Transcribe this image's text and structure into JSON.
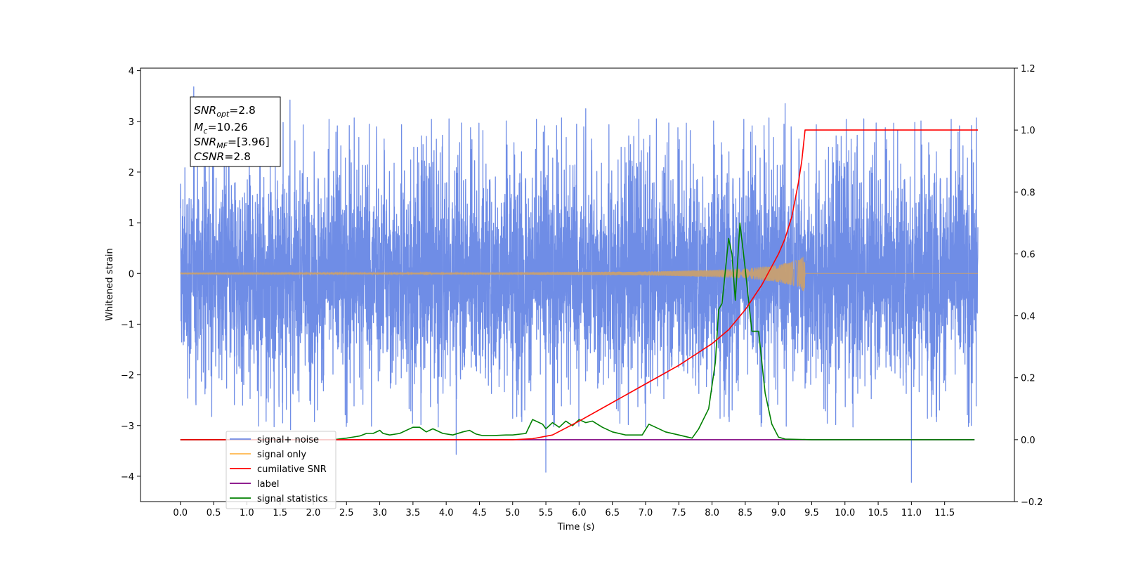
{
  "chart_data": {
    "type": "line",
    "xlabel": "Time (s)",
    "ylabel": "Whitened strain",
    "xlim": [
      -0.6,
      12.55
    ],
    "ylim": [
      -4.5,
      4.05
    ],
    "y2lim": [
      -0.2,
      1.2
    ],
    "x_ticks": [
      "0.0",
      "0.5",
      "1.0",
      "1.5",
      "2.0",
      "2.5",
      "3.0",
      "3.5",
      "4.0",
      "4.5",
      "5.0",
      "5.5",
      "6.0",
      "6.5",
      "7.0",
      "7.5",
      "8.0",
      "8.5",
      "9.0",
      "9.5",
      "10.0",
      "10.5",
      "11.0",
      "11.5"
    ],
    "y_ticks": [
      "4",
      "3",
      "2",
      "1",
      "0",
      "−1",
      "−2",
      "−3",
      "−4"
    ],
    "y2_ticks": [
      "−0.2",
      "0.0",
      "0.2",
      "0.4",
      "0.6",
      "0.8",
      "1.0",
      "1.2"
    ],
    "annotation": {
      "line1": "=2.8",
      "line2": "=10.26",
      "line3": "=[3.96]",
      "line4": "=2.8"
    },
    "legend": {
      "position": "lower-left",
      "entries": [
        {
          "label": "signal+ noise",
          "color": "#6f8de6"
        },
        {
          "label": "signal only",
          "color": "#ffb74d"
        },
        {
          "label": "cumilative SNR",
          "color": "#ff0000"
        },
        {
          "label": "label",
          "color": "#800080"
        },
        {
          "label": "signal statistics",
          "color": "#008000"
        }
      ]
    },
    "series": [
      {
        "name": "signal+ noise",
        "color": "#6f8de6",
        "axis": "left",
        "x_range": [
          0.0,
          12.0
        ],
        "typical_range": [
          -1.9,
          1.9
        ],
        "extremes": [
          [
            0.2,
            3.68
          ],
          [
            1.65,
            3.42
          ],
          [
            4.15,
            -3.57
          ],
          [
            5.5,
            -3.92
          ],
          [
            6.1,
            3.25
          ],
          [
            9.1,
            3.35
          ],
          [
            11.0,
            -4.12
          ],
          [
            11.05,
            2.98
          ],
          [
            11.9,
            -3.0
          ]
        ]
      },
      {
        "name": "signal only",
        "color": "#c8a070",
        "axis": "left",
        "x_range": [
          0.0,
          12.0
        ],
        "envelope": [
          [
            0.0,
            0.01
          ],
          [
            5.0,
            0.02
          ],
          [
            7.0,
            0.04
          ],
          [
            8.0,
            0.07
          ],
          [
            8.5,
            0.1
          ],
          [
            9.0,
            0.17
          ],
          [
            9.3,
            0.27
          ],
          [
            9.4,
            0.38
          ]
        ],
        "merger_time": 9.4
      },
      {
        "name": "cumilative SNR",
        "color": "#ff0000",
        "axis": "right",
        "x": [
          5.0,
          5.3,
          5.6,
          6.0,
          6.5,
          7.0,
          7.5,
          8.0,
          8.25,
          8.5,
          8.75,
          8.9,
          9.0,
          9.1,
          9.2,
          9.3,
          9.35,
          9.4,
          12.0
        ],
        "values": [
          0.0,
          0.003,
          0.015,
          0.06,
          0.12,
          0.18,
          0.24,
          0.31,
          0.355,
          0.42,
          0.5,
          0.56,
          0.6,
          0.65,
          0.72,
          0.83,
          0.9,
          1.0,
          1.0
        ]
      },
      {
        "name": "label",
        "color": "#800080",
        "axis": "right",
        "x": [
          0.0,
          11.95
        ],
        "values": [
          0.0,
          0.0
        ]
      },
      {
        "name": "signal statistics",
        "color": "#008000",
        "axis": "right",
        "x": [
          0.0,
          2.3,
          2.5,
          2.7,
          2.8,
          2.9,
          3.0,
          3.05,
          3.15,
          3.3,
          3.5,
          3.6,
          3.7,
          3.8,
          3.95,
          4.1,
          4.25,
          4.35,
          4.45,
          4.55,
          4.7,
          4.9,
          5.0,
          5.2,
          5.3,
          5.45,
          5.5,
          5.6,
          5.7,
          5.8,
          5.9,
          6.0,
          6.1,
          6.2,
          6.35,
          6.5,
          6.7,
          6.95,
          7.05,
          7.15,
          7.3,
          7.5,
          7.7,
          7.8,
          7.95,
          8.05,
          8.1,
          8.15,
          8.25,
          8.3,
          8.35,
          8.42,
          8.5,
          8.6,
          8.7,
          8.8,
          8.9,
          9.0,
          9.1,
          9.5,
          11.95
        ],
        "values": [
          0.0,
          0.0,
          0.005,
          0.012,
          0.02,
          0.02,
          0.03,
          0.02,
          0.015,
          0.02,
          0.04,
          0.04,
          0.025,
          0.035,
          0.02,
          0.015,
          0.025,
          0.03,
          0.018,
          0.013,
          0.013,
          0.015,
          0.015,
          0.02,
          0.065,
          0.05,
          0.035,
          0.055,
          0.04,
          0.06,
          0.045,
          0.065,
          0.055,
          0.06,
          0.04,
          0.025,
          0.015,
          0.015,
          0.05,
          0.04,
          0.025,
          0.015,
          0.005,
          0.035,
          0.1,
          0.25,
          0.42,
          0.44,
          0.65,
          0.6,
          0.45,
          0.7,
          0.55,
          0.35,
          0.35,
          0.15,
          0.05,
          0.008,
          0.002,
          0.0,
          0.0
        ]
      }
    ],
    "grid": false
  }
}
